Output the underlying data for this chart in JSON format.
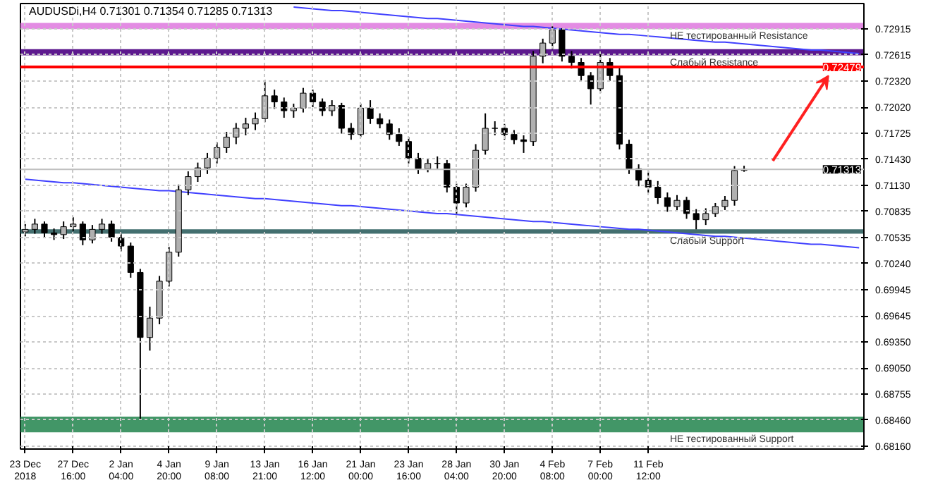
{
  "chart_data": {
    "type": "candlestick",
    "title": "AUDUSDi,H4  0.71301 0.71354 0.71285 0.71313",
    "categories": [
      "23 Dec 2018",
      null,
      null,
      null,
      null,
      "27 Dec 16:00",
      null,
      null,
      null,
      null,
      "2 Jan 04:00",
      null,
      null,
      null,
      null,
      "4 Jan 20:00",
      null,
      null,
      null,
      null,
      "9 Jan 08:00",
      null,
      null,
      null,
      null,
      "13 Jan 21:00",
      null,
      null,
      null,
      null,
      "16 Jan 12:00",
      null,
      null,
      null,
      null,
      "21 Jan 00:00",
      null,
      null,
      null,
      null,
      "23 Jan 16:00",
      null,
      null,
      null,
      null,
      "28 Jan 04:00",
      null,
      null,
      null,
      null,
      "30 Jan 20:00",
      null,
      null,
      null,
      null,
      "4 Feb 08:00",
      null,
      null,
      null,
      null,
      "7 Feb 00:00",
      null,
      null,
      null,
      null,
      "11 Feb 12:00",
      null,
      null,
      null,
      null,
      null,
      null,
      null,
      null,
      null,
      null,
      null,
      null,
      null,
      null,
      null,
      null,
      null,
      null,
      null,
      null,
      null,
      null
    ],
    "ohlc": [
      [
        0.706,
        0.7069,
        0.7055,
        0.7063
      ],
      [
        0.7063,
        0.7075,
        0.7058,
        0.7069
      ],
      [
        0.7069,
        0.7072,
        0.7053,
        0.7059
      ],
      [
        0.7059,
        0.7064,
        0.7051,
        0.7057
      ],
      [
        0.7057,
        0.7072,
        0.7052,
        0.7066
      ],
      [
        0.7066,
        0.7077,
        0.7061,
        0.7069
      ],
      [
        0.7069,
        0.7072,
        0.7045,
        0.7051
      ],
      [
        0.7051,
        0.7068,
        0.7047,
        0.7063
      ],
      [
        0.7063,
        0.7075,
        0.7058,
        0.7069
      ],
      [
        0.7069,
        0.7073,
        0.7049,
        0.7054
      ],
      [
        0.7054,
        0.7058,
        0.7038,
        0.7044
      ],
      [
        0.7044,
        0.7048,
        0.7008,
        0.7014
      ],
      [
        0.7014,
        0.7018,
        0.6846,
        0.694
      ],
      [
        0.694,
        0.6975,
        0.6925,
        0.6962
      ],
      [
        0.6962,
        0.701,
        0.6955,
        0.7004
      ],
      [
        0.7004,
        0.7043,
        0.6998,
        0.7037
      ],
      [
        0.7037,
        0.7114,
        0.7032,
        0.7108
      ],
      [
        0.7108,
        0.7129,
        0.7102,
        0.7123
      ],
      [
        0.7123,
        0.7139,
        0.7117,
        0.7133
      ],
      [
        0.7133,
        0.715,
        0.7126,
        0.7144
      ],
      [
        0.7144,
        0.7162,
        0.7138,
        0.7156
      ],
      [
        0.7156,
        0.7174,
        0.715,
        0.7168
      ],
      [
        0.7168,
        0.7184,
        0.716,
        0.7178
      ],
      [
        0.7178,
        0.719,
        0.717,
        0.7183
      ],
      [
        0.7183,
        0.7196,
        0.7176,
        0.7189
      ],
      [
        0.7189,
        0.7233,
        0.7185,
        0.7215
      ],
      [
        0.7215,
        0.7222,
        0.72,
        0.7208
      ],
      [
        0.7208,
        0.7213,
        0.719,
        0.7198
      ],
      [
        0.7198,
        0.7206,
        0.719,
        0.7201
      ],
      [
        0.7201,
        0.7224,
        0.7196,
        0.7218
      ],
      [
        0.7218,
        0.7222,
        0.7202,
        0.7208
      ],
      [
        0.7208,
        0.7212,
        0.7192,
        0.7198
      ],
      [
        0.7198,
        0.721,
        0.7192,
        0.7204
      ],
      [
        0.7204,
        0.7207,
        0.7172,
        0.7178
      ],
      [
        0.7178,
        0.7184,
        0.7165,
        0.7171
      ],
      [
        0.7171,
        0.7206,
        0.7168,
        0.7201
      ],
      [
        0.7201,
        0.721,
        0.7183,
        0.7189
      ],
      [
        0.7189,
        0.7195,
        0.7178,
        0.7183
      ],
      [
        0.7183,
        0.7188,
        0.7165,
        0.7171
      ],
      [
        0.7171,
        0.7178,
        0.7158,
        0.7163
      ],
      [
        0.7163,
        0.7168,
        0.7138,
        0.7144
      ],
      [
        0.7144,
        0.715,
        0.7126,
        0.7132
      ],
      [
        0.7132,
        0.7143,
        0.7128,
        0.7138
      ],
      [
        0.7138,
        0.7146,
        0.7132,
        0.7138
      ],
      [
        0.7138,
        0.7142,
        0.7105,
        0.7111
      ],
      [
        0.7111,
        0.7115,
        0.7081,
        0.7093
      ],
      [
        0.7093,
        0.7115,
        0.7088,
        0.7111
      ],
      [
        0.7111,
        0.716,
        0.7106,
        0.7153
      ],
      [
        0.7153,
        0.7195,
        0.7148,
        0.7178
      ],
      [
        0.7178,
        0.7186,
        0.717,
        0.7178
      ],
      [
        0.7178,
        0.7183,
        0.7165,
        0.7171
      ],
      [
        0.7171,
        0.7176,
        0.716,
        0.7165
      ],
      [
        0.7165,
        0.717,
        0.715,
        0.7163
      ],
      [
        0.7163,
        0.7266,
        0.7158,
        0.726
      ],
      [
        0.726,
        0.728,
        0.7252,
        0.7275
      ],
      [
        0.7275,
        0.7294,
        0.7268,
        0.729
      ],
      [
        0.729,
        0.7292,
        0.7254,
        0.726
      ],
      [
        0.726,
        0.7266,
        0.7246,
        0.7253
      ],
      [
        0.7253,
        0.7258,
        0.7232,
        0.7238
      ],
      [
        0.7238,
        0.7242,
        0.7205,
        0.7223
      ],
      [
        0.7223,
        0.7265,
        0.7218,
        0.7253
      ],
      [
        0.7253,
        0.7258,
        0.7232,
        0.7238
      ],
      [
        0.7238,
        0.7248,
        0.7154,
        0.716
      ],
      [
        0.716,
        0.7165,
        0.7126,
        0.7132
      ],
      [
        0.7132,
        0.7137,
        0.7112,
        0.7119
      ],
      [
        0.7119,
        0.713,
        0.7104,
        0.7111
      ],
      [
        0.7111,
        0.7118,
        0.7092,
        0.7099
      ],
      [
        0.7099,
        0.7105,
        0.7083,
        0.7089
      ],
      [
        0.7089,
        0.7102,
        0.7084,
        0.7096
      ],
      [
        0.7096,
        0.71,
        0.7075,
        0.7081
      ],
      [
        0.7081,
        0.7086,
        0.7063,
        0.7074
      ],
      [
        0.7074,
        0.7087,
        0.7068,
        0.7081
      ],
      [
        0.7081,
        0.7093,
        0.7077,
        0.7089
      ],
      [
        0.7089,
        0.7101,
        0.7085,
        0.7096
      ],
      [
        0.7096,
        0.7135,
        0.709,
        0.713
      ],
      [
        0.71301,
        0.71354,
        0.71285,
        0.71313
      ],
      null,
      null,
      null,
      null,
      null,
      null,
      null,
      null,
      null,
      null,
      null,
      null
    ],
    "series": [
      {
        "type": "line",
        "color": "#4040ff",
        "values": [
          null,
          null,
          null,
          null,
          null,
          null,
          null,
          null,
          null,
          null,
          null,
          null,
          null,
          null,
          null,
          null,
          null,
          null,
          null,
          null,
          null,
          null,
          null,
          null,
          null,
          null,
          null,
          null,
          0.7316,
          0.7315,
          0.7314,
          0.7313,
          0.7312,
          0.7312,
          0.7311,
          0.731,
          0.7309,
          0.7308,
          0.7307,
          0.7306,
          0.7305,
          0.7304,
          0.7303,
          0.7303,
          0.7302,
          0.7301,
          0.73,
          0.7299,
          0.7298,
          0.7297,
          0.7296,
          0.7295,
          0.7294,
          0.7294,
          0.7293,
          0.7292,
          0.7291,
          0.729,
          0.7289,
          0.7288,
          0.7287,
          0.7286,
          0.7285,
          0.7285,
          0.7284,
          0.7283,
          0.7282,
          0.7281,
          0.728,
          0.7279,
          0.7278,
          0.7277,
          0.7276,
          0.7276,
          0.7275,
          0.7274,
          0.7273,
          0.7272,
          0.7271,
          0.727,
          0.7269,
          0.7268,
          0.7267,
          0.7267,
          0.7266,
          0.7265,
          0.7264,
          0.7263
        ]
      },
      {
        "type": "line",
        "color": "#4040ff",
        "values": [
          0.712,
          0.7119,
          0.7118,
          0.7117,
          0.7116,
          0.7116,
          0.7115,
          0.7114,
          0.7113,
          0.7112,
          0.7111,
          0.711,
          0.7109,
          0.7108,
          0.7107,
          0.7107,
          0.7106,
          0.7105,
          0.7104,
          0.7103,
          0.7102,
          0.7101,
          0.71,
          0.7099,
          0.7098,
          0.7098,
          0.7097,
          0.7096,
          0.7095,
          0.7094,
          0.7093,
          0.7092,
          0.7091,
          0.709,
          0.709,
          0.7089,
          0.7088,
          0.7087,
          0.7086,
          0.7085,
          0.7084,
          0.7083,
          0.7082,
          0.7081,
          0.7081,
          0.708,
          0.7079,
          0.7078,
          0.7077,
          0.7076,
          0.7075,
          0.7074,
          0.7073,
          0.7072,
          0.7072,
          0.7071,
          0.707,
          0.7069,
          0.7068,
          0.7067,
          0.7066,
          0.7065,
          0.7064,
          0.7063,
          0.7063,
          0.7062,
          0.7061,
          0.706,
          0.7059,
          0.7058,
          0.7057,
          0.7056,
          0.7055,
          0.7055,
          0.7054,
          0.7053,
          0.7052,
          0.7051,
          0.705,
          0.7049,
          0.7048,
          0.7047,
          0.7046,
          0.7046,
          0.7045,
          0.7044,
          0.7043,
          0.7042
        ]
      }
    ],
    "ylim": [
      0.6813,
      0.732
    ],
    "yticks": [
      {
        "value": 0.72915,
        "label": "0.72915"
      },
      {
        "value": 0.72615,
        "label": "0.72615"
      },
      {
        "value": 0.7232,
        "label": "0.72320"
      },
      {
        "value": 0.7202,
        "label": "0.72020"
      },
      {
        "value": 0.71725,
        "label": "0.71725"
      },
      {
        "value": 0.7143,
        "label": "0.71430"
      },
      {
        "value": 0.7113,
        "label": "0.71130"
      },
      {
        "value": 0.70835,
        "label": "0.70835"
      },
      {
        "value": 0.70535,
        "label": "0.70535"
      },
      {
        "value": 0.7024,
        "label": "0.70240"
      },
      {
        "value": 0.69945,
        "label": "0.69945"
      },
      {
        "value": 0.69645,
        "label": "0.69645"
      },
      {
        "value": 0.6935,
        "label": "0.69350"
      },
      {
        "value": 0.6905,
        "label": "0.69050"
      },
      {
        "value": 0.68755,
        "label": "0.68755"
      },
      {
        "value": 0.6846,
        "label": "0.68460"
      },
      {
        "value": 0.6816,
        "label": "0.68160"
      }
    ],
    "ref_lines": [
      {
        "axis": "y",
        "value": 0.72479,
        "label": "0.72479",
        "color": "#ff0000"
      },
      {
        "axis": "y",
        "value": 0.71313,
        "label": "0.71313",
        "color": "#c0c0c0"
      }
    ],
    "bands": [
      {
        "axis": "y",
        "from": 0.7291,
        "to": 0.7298,
        "label": "НЕ тестированный Resistance",
        "color": "#e080e0"
      },
      {
        "axis": "y",
        "from": 0.7261,
        "to": 0.7268,
        "label": "Слабый Resistance",
        "color": "#4b0082"
      },
      {
        "axis": "y",
        "from": 0.7058,
        "to": 0.7063,
        "label": "Слабый Support",
        "color": "#2f5f5f"
      },
      {
        "axis": "y",
        "from": 0.6832,
        "to": 0.685,
        "label": "НЕ тестированный Support",
        "color": "#2e8b57"
      }
    ],
    "grid": true
  }
}
